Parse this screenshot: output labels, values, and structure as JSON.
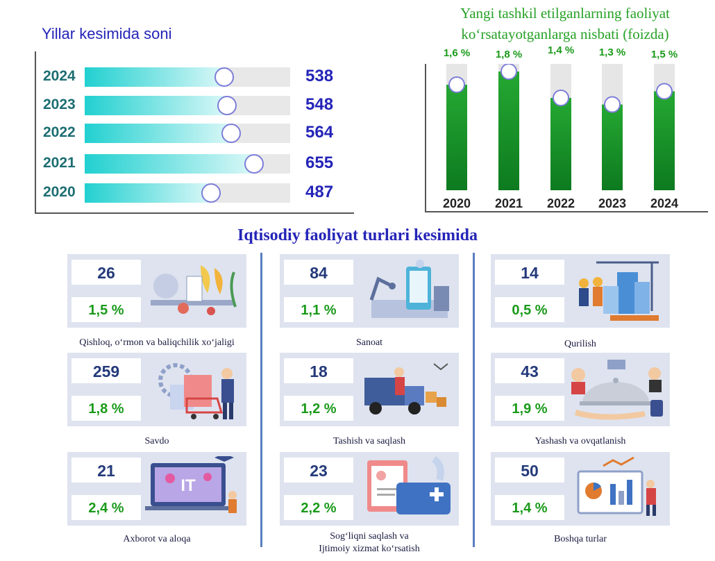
{
  "left_chart": {
    "title": "Yillar kesimida soni",
    "chart_data": {
      "type": "bar",
      "orientation": "horizontal",
      "categories": [
        "2024",
        "2023",
        "2022",
        "2021",
        "2020"
      ],
      "values": [
        538,
        548,
        564,
        655,
        487
      ],
      "value_labels": [
        "538",
        "548",
        "564",
        "655",
        "487"
      ],
      "colors": {
        "fill": "#22d0d0",
        "track": "#e8e8e8",
        "label": "#2424b8",
        "category": "#1d6e72"
      }
    }
  },
  "right_chart": {
    "title_line1": "Yangi tashkil etilganlarning faoliyat",
    "title_line2": "ko‘rsatayotganlarga nisbati (foizda)",
    "chart_data": {
      "type": "bar",
      "orientation": "vertical",
      "categories": [
        "2020",
        "2021",
        "2022",
        "2023",
        "2024"
      ],
      "values": [
        1.6,
        1.8,
        1.4,
        1.3,
        1.5
      ],
      "value_labels": [
        "1,6 %",
        "1,8 %",
        "1,4 %",
        "1,3 %",
        "1,5 %"
      ],
      "colors": {
        "fill": "#1b9a2a",
        "track": "#e6e6e6",
        "label": "#1a9a1a"
      }
    }
  },
  "section_title": "Iqtisodiy faoliyat turlari kesimida",
  "cards": [
    {
      "count": "26",
      "percent": "1,5 %",
      "label_line1": "Qishloq, o‘rmon va baliqchilik xo‘jaligi",
      "label_line2": "",
      "icon": "agriculture-icon"
    },
    {
      "count": "84",
      "percent": "1,1 %",
      "label_line1": "Sanoat",
      "label_line2": "",
      "icon": "industry-icon"
    },
    {
      "count": "14",
      "percent": "0,5 %",
      "label_line1": "Qurilish",
      "label_line2": "",
      "icon": "construction-icon"
    },
    {
      "count": "259",
      "percent": "1,8 %",
      "label_line1": "Savdo",
      "label_line2": "",
      "icon": "shopping-icon"
    },
    {
      "count": "18",
      "percent": "1,2 %",
      "label_line1": "Tashish va saqlash",
      "label_line2": "",
      "icon": "delivery-truck-icon"
    },
    {
      "count": "43",
      "percent": "1,9 %",
      "label_line1": "Yashash va ovqatlanish",
      "label_line2": "",
      "icon": "food-service-icon"
    },
    {
      "count": "21",
      "percent": "2,4 %",
      "label_line1": "Axborot va aloqa",
      "label_line2": "",
      "icon": "it-laptop-icon"
    },
    {
      "count": "23",
      "percent": "2,2 %",
      "label_line1": "Sog‘liqni saqlash va",
      "label_line2": "Ijtimoiy xizmat ko‘rsatish",
      "icon": "medical-icon"
    },
    {
      "count": "50",
      "percent": "1,4 %",
      "label_line1": "Boshqa turlar",
      "label_line2": "",
      "icon": "analytics-board-icon"
    }
  ]
}
